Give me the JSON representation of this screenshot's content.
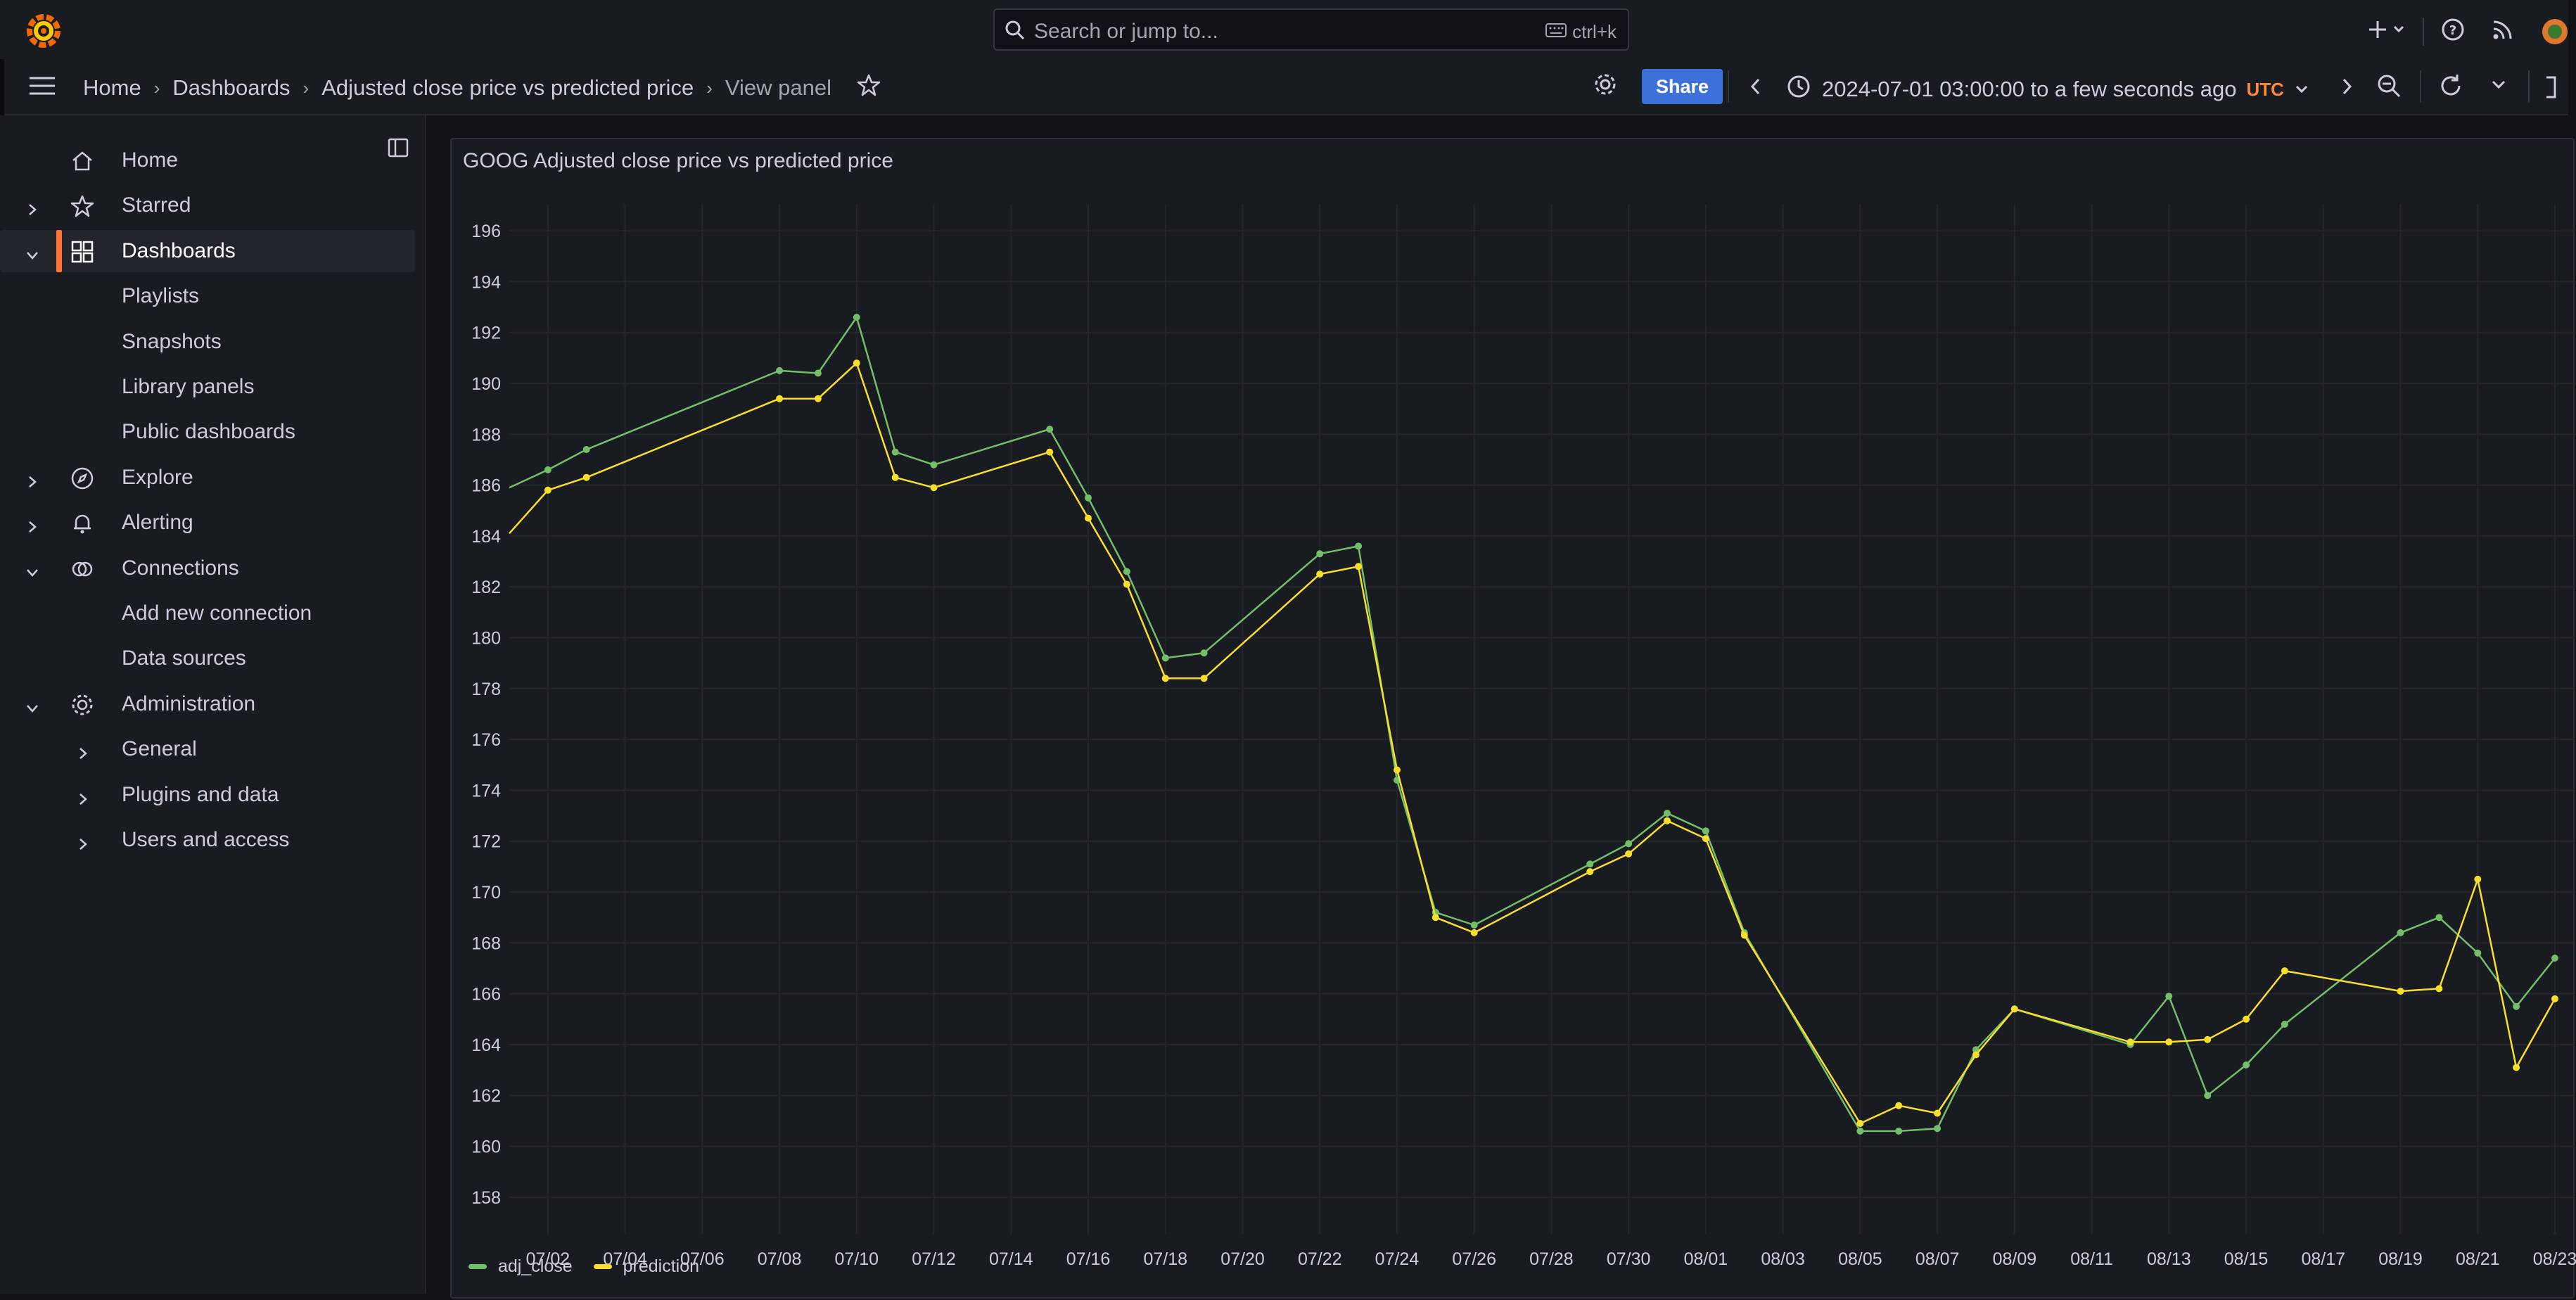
{
  "topbar": {
    "search_placeholder": "Search or jump to...",
    "search_shortcut": "ctrl+k"
  },
  "breadcrumb": {
    "items": [
      "Home",
      "Dashboards",
      "Adjusted close price vs predicted price",
      "View panel"
    ]
  },
  "toolbar": {
    "share_label": "Share",
    "time_range": "2024-07-01 03:00:00 to a few seconds ago",
    "timezone": "UTC"
  },
  "sidebar": {
    "items": [
      {
        "label": "Home",
        "icon": "home-icon",
        "chevron": "",
        "indent": 0
      },
      {
        "label": "Starred",
        "icon": "star-icon",
        "chevron": "right",
        "indent": 0
      },
      {
        "label": "Dashboards",
        "icon": "dashboards-icon",
        "chevron": "down",
        "indent": 0,
        "active": true
      },
      {
        "label": "Playlists",
        "icon": "",
        "chevron": "",
        "indent": 1
      },
      {
        "label": "Snapshots",
        "icon": "",
        "chevron": "",
        "indent": 1
      },
      {
        "label": "Library panels",
        "icon": "",
        "chevron": "",
        "indent": 1
      },
      {
        "label": "Public dashboards",
        "icon": "",
        "chevron": "",
        "indent": 1
      },
      {
        "label": "Explore",
        "icon": "compass-icon",
        "chevron": "right",
        "indent": 0
      },
      {
        "label": "Alerting",
        "icon": "bell-icon",
        "chevron": "right",
        "indent": 0
      },
      {
        "label": "Connections",
        "icon": "connections-icon",
        "chevron": "down",
        "indent": 0
      },
      {
        "label": "Add new connection",
        "icon": "",
        "chevron": "",
        "indent": 1
      },
      {
        "label": "Data sources",
        "icon": "",
        "chevron": "",
        "indent": 1
      },
      {
        "label": "Administration",
        "icon": "gear-icon",
        "chevron": "down",
        "indent": 0
      },
      {
        "label": "General",
        "icon": "",
        "chevron": "right",
        "indent": 1
      },
      {
        "label": "Plugins and data",
        "icon": "",
        "chevron": "right",
        "indent": 1
      },
      {
        "label": "Users and access",
        "icon": "",
        "chevron": "right",
        "indent": 1
      }
    ]
  },
  "colors": {
    "adj_close": "#73bf69",
    "prediction": "#fade2a",
    "accent": "#ff7533",
    "share": "#3d71d9"
  },
  "panel": {
    "title": "GOOG Adjusted close price vs predicted price"
  },
  "chart_data": {
    "type": "line",
    "title": "GOOG Adjusted close price vs predicted price",
    "xlabel": "",
    "ylabel": "",
    "ylim": [
      157,
      196.5
    ],
    "xlim": [
      "2024-07-01",
      "2024-08-23"
    ],
    "yticks": [
      158,
      160,
      162,
      164,
      166,
      168,
      170,
      172,
      174,
      176,
      178,
      180,
      182,
      184,
      186,
      188,
      190,
      192,
      194,
      196
    ],
    "xticks": [
      "07/02",
      "07/04",
      "07/06",
      "07/08",
      "07/10",
      "07/12",
      "07/14",
      "07/16",
      "07/18",
      "07/20",
      "07/22",
      "07/24",
      "07/26",
      "07/28",
      "07/30",
      "08/01",
      "08/03",
      "08/05",
      "08/07",
      "08/09",
      "08/11",
      "08/13",
      "08/15",
      "08/17",
      "08/19",
      "08/21",
      "08/23"
    ],
    "grid": true,
    "legend_position": "bottom-left",
    "dates": [
      "2024-07-01",
      "2024-07-02",
      "2024-07-03",
      "2024-07-08",
      "2024-07-09",
      "2024-07-10",
      "2024-07-11",
      "2024-07-12",
      "2024-07-15",
      "2024-07-16",
      "2024-07-17",
      "2024-07-18",
      "2024-07-19",
      "2024-07-22",
      "2024-07-23",
      "2024-07-24",
      "2024-07-25",
      "2024-07-26",
      "2024-07-29",
      "2024-07-30",
      "2024-07-31",
      "2024-08-01",
      "2024-08-02",
      "2024-08-05",
      "2024-08-06",
      "2024-08-07",
      "2024-08-08",
      "2024-08-09",
      "2024-08-12",
      "2024-08-13",
      "2024-08-14",
      "2024-08-15",
      "2024-08-16",
      "2024-08-19",
      "2024-08-20",
      "2024-08-21",
      "2024-08-22",
      "2024-08-23"
    ],
    "series": [
      {
        "name": "adj_close",
        "color": "#73bf69",
        "values": [
          185.9,
          186.6,
          187.4,
          190.5,
          190.4,
          192.6,
          187.3,
          186.8,
          188.2,
          185.5,
          182.6,
          179.2,
          179.4,
          183.3,
          183.6,
          174.4,
          169.2,
          168.7,
          171.1,
          171.9,
          173.1,
          172.4,
          168.4,
          160.6,
          160.6,
          160.7,
          163.8,
          165.4,
          164.0,
          165.9,
          162.0,
          163.2,
          164.8,
          168.4,
          169.0,
          167.6,
          165.5,
          167.4
        ]
      },
      {
        "name": "prediction",
        "color": "#fade2a",
        "values": [
          184.1,
          185.8,
          186.3,
          189.4,
          189.4,
          190.8,
          186.3,
          185.9,
          187.3,
          184.7,
          182.1,
          178.4,
          178.4,
          182.5,
          182.8,
          174.8,
          169.0,
          168.4,
          170.8,
          171.5,
          172.8,
          172.1,
          168.3,
          160.9,
          161.6,
          161.3,
          163.6,
          165.4,
          164.1,
          164.1,
          164.2,
          165.0,
          166.9,
          166.1,
          166.2,
          170.5,
          163.1,
          165.8
        ]
      }
    ]
  }
}
